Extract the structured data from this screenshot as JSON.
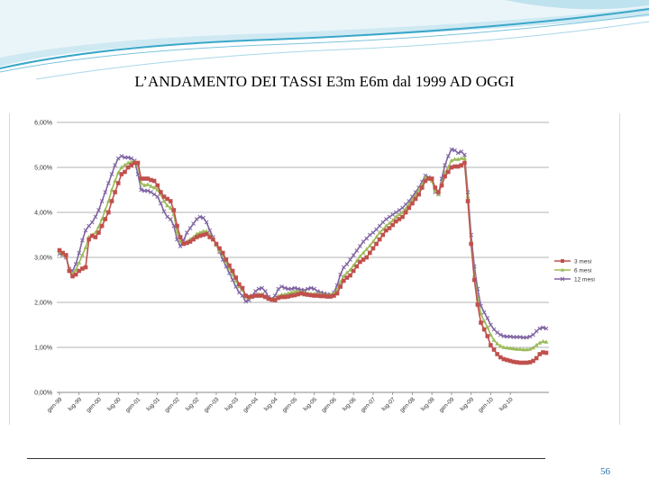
{
  "title": "L’ANDAMENTO DEI TASSI  E3m E6m dal 1999 AD OGGI",
  "page_number": "56",
  "colors": {
    "header_wave": "#3aa7c9",
    "header_light": "#d8eef6"
  },
  "chart_data": {
    "type": "line",
    "title": "",
    "xlabel": "",
    "ylabel": "",
    "ylim": [
      0,
      6
    ],
    "y_ticks": [
      "0,00%",
      "1,00%",
      "2,00%",
      "3,00%",
      "4,00%",
      "5,00%",
      "6,00%"
    ],
    "grid": "horizontal",
    "legend_position": "right",
    "x_ticks": [
      "gen-99",
      "lug-99",
      "gen-00",
      "lug-00",
      "gen-01",
      "lug-01",
      "gen-02",
      "lug-02",
      "gen-03",
      "lug-03",
      "gen-04",
      "lug-04",
      "gen-05",
      "lug-05",
      "gen-06",
      "lug-06",
      "gen-07",
      "lug-07",
      "gen-08",
      "lug-08",
      "gen-09",
      "lug-09",
      "gen-10",
      "lug-10"
    ],
    "months_per_tick": 6,
    "series": [
      {
        "name": "3 mesi",
        "color": "#c0504d",
        "marker": "square",
        "values": [
          3.16,
          3.1,
          3.05,
          2.7,
          2.58,
          2.62,
          2.7,
          2.75,
          2.78,
          3.4,
          3.48,
          3.45,
          3.55,
          3.7,
          3.85,
          4.0,
          4.25,
          4.45,
          4.65,
          4.85,
          4.9,
          5.0,
          5.05,
          5.1,
          5.1,
          4.75,
          4.75,
          4.75,
          4.72,
          4.7,
          4.6,
          4.45,
          4.35,
          4.3,
          4.25,
          4.05,
          3.7,
          3.45,
          3.3,
          3.32,
          3.35,
          3.4,
          3.45,
          3.48,
          3.5,
          3.52,
          3.45,
          3.4,
          3.3,
          3.2,
          3.1,
          2.95,
          2.82,
          2.7,
          2.55,
          2.4,
          2.32,
          2.15,
          2.12,
          2.13,
          2.15,
          2.15,
          2.15,
          2.12,
          2.08,
          2.06,
          2.05,
          2.1,
          2.12,
          2.12,
          2.13,
          2.15,
          2.16,
          2.18,
          2.2,
          2.18,
          2.17,
          2.16,
          2.15,
          2.15,
          2.14,
          2.14,
          2.13,
          2.13,
          2.15,
          2.2,
          2.35,
          2.48,
          2.55,
          2.6,
          2.7,
          2.8,
          2.9,
          2.95,
          3.0,
          3.1,
          3.2,
          3.3,
          3.4,
          3.5,
          3.6,
          3.65,
          3.72,
          3.8,
          3.85,
          3.9,
          4.0,
          4.1,
          4.2,
          4.3,
          4.4,
          4.55,
          4.7,
          4.75,
          4.75,
          4.55,
          4.45,
          4.6,
          4.8,
          4.9,
          5.0,
          5.02,
          5.02,
          5.05,
          5.1,
          4.25,
          3.3,
          2.5,
          1.95,
          1.55,
          1.4,
          1.25,
          1.05,
          0.95,
          0.85,
          0.78,
          0.74,
          0.72,
          0.7,
          0.68,
          0.67,
          0.66,
          0.66,
          0.66,
          0.67,
          0.7,
          0.76,
          0.85,
          0.89,
          0.88
        ]
      },
      {
        "name": "6 mesi",
        "color": "#9bbb59",
        "marker": "triangle",
        "values": [
          3.12,
          3.07,
          3.03,
          2.72,
          2.64,
          2.72,
          2.88,
          3.05,
          3.22,
          3.45,
          3.5,
          3.55,
          3.68,
          3.85,
          4.05,
          4.25,
          4.5,
          4.7,
          4.88,
          5.0,
          5.05,
          5.1,
          5.12,
          5.12,
          5.05,
          4.65,
          4.6,
          4.62,
          4.58,
          4.55,
          4.5,
          4.4,
          4.25,
          4.15,
          4.1,
          3.95,
          3.55,
          3.35,
          3.3,
          3.35,
          3.4,
          3.45,
          3.52,
          3.55,
          3.58,
          3.58,
          3.5,
          3.42,
          3.28,
          3.15,
          3.05,
          2.9,
          2.75,
          2.62,
          2.48,
          2.35,
          2.28,
          2.12,
          2.1,
          2.12,
          2.16,
          2.18,
          2.18,
          2.14,
          2.08,
          2.07,
          2.08,
          2.14,
          2.17,
          2.18,
          2.2,
          2.22,
          2.24,
          2.24,
          2.24,
          2.22,
          2.2,
          2.19,
          2.19,
          2.19,
          2.18,
          2.17,
          2.17,
          2.17,
          2.2,
          2.28,
          2.45,
          2.58,
          2.66,
          2.72,
          2.82,
          2.92,
          3.02,
          3.1,
          3.18,
          3.26,
          3.35,
          3.45,
          3.55,
          3.62,
          3.7,
          3.76,
          3.82,
          3.9,
          3.95,
          4.0,
          4.08,
          4.18,
          4.28,
          4.38,
          4.5,
          4.62,
          4.78,
          4.75,
          4.7,
          4.48,
          4.4,
          4.65,
          4.88,
          5.0,
          5.15,
          5.18,
          5.18,
          5.2,
          5.2,
          4.35,
          3.35,
          2.6,
          2.1,
          1.75,
          1.58,
          1.45,
          1.28,
          1.16,
          1.08,
          1.03,
          1.0,
          0.99,
          0.98,
          0.97,
          0.96,
          0.96,
          0.95,
          0.95,
          0.96,
          0.99,
          1.05,
          1.1,
          1.13,
          1.12
        ]
      },
      {
        "name": "12 mesi",
        "color": "#8064a2",
        "marker": "cross",
        "values": [
          3.08,
          3.05,
          3.0,
          2.75,
          2.7,
          2.85,
          3.1,
          3.38,
          3.6,
          3.7,
          3.78,
          3.9,
          4.05,
          4.25,
          4.45,
          4.65,
          4.85,
          5.05,
          5.2,
          5.25,
          5.22,
          5.22,
          5.2,
          5.15,
          4.85,
          4.5,
          4.48,
          4.48,
          4.45,
          4.4,
          4.35,
          4.2,
          4.02,
          3.9,
          3.85,
          3.7,
          3.4,
          3.25,
          3.38,
          3.55,
          3.65,
          3.75,
          3.85,
          3.9,
          3.88,
          3.78,
          3.6,
          3.45,
          3.28,
          3.12,
          2.95,
          2.8,
          2.65,
          2.5,
          2.35,
          2.22,
          2.15,
          2.02,
          2.05,
          2.15,
          2.25,
          2.3,
          2.32,
          2.25,
          2.12,
          2.08,
          2.15,
          2.3,
          2.35,
          2.32,
          2.3,
          2.3,
          2.32,
          2.3,
          2.28,
          2.27,
          2.3,
          2.32,
          2.3,
          2.25,
          2.22,
          2.2,
          2.18,
          2.17,
          2.22,
          2.38,
          2.62,
          2.78,
          2.85,
          2.95,
          3.05,
          3.15,
          3.25,
          3.35,
          3.42,
          3.5,
          3.55,
          3.62,
          3.7,
          3.78,
          3.85,
          3.9,
          3.95,
          4.0,
          4.05,
          4.1,
          4.18,
          4.25,
          4.35,
          4.45,
          4.55,
          4.68,
          4.82,
          4.78,
          4.75,
          4.45,
          4.4,
          4.75,
          5.05,
          5.25,
          5.4,
          5.38,
          5.32,
          5.35,
          5.28,
          4.45,
          3.5,
          2.8,
          2.3,
          1.92,
          1.78,
          1.65,
          1.5,
          1.4,
          1.33,
          1.28,
          1.25,
          1.24,
          1.24,
          1.23,
          1.23,
          1.23,
          1.22,
          1.22,
          1.24,
          1.28,
          1.36,
          1.42,
          1.44,
          1.42
        ]
      }
    ]
  }
}
